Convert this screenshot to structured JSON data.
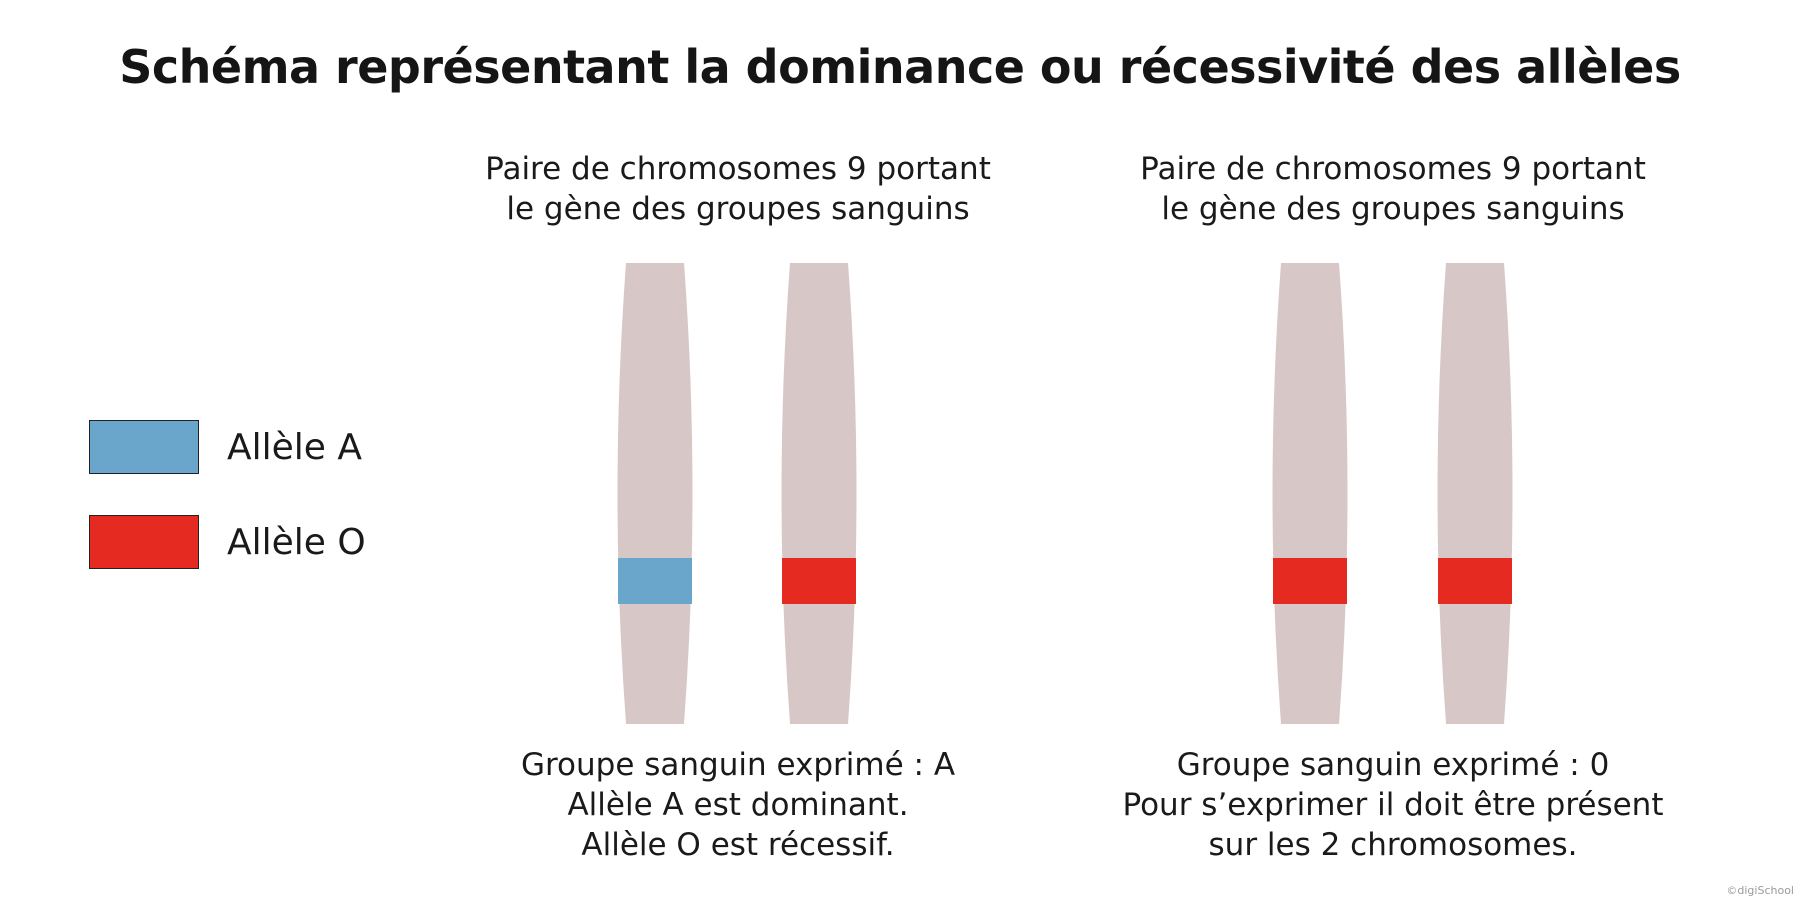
{
  "title": "Schéma représentant la dominance ou récessivité des allèles",
  "colors": {
    "allele_a": "#6aa6cc",
    "allele_o": "#e52a22",
    "chromosome": "#d8c7c7",
    "text": "#1a1a1a"
  },
  "legend": [
    {
      "label": "Allèle A",
      "color": "#6aa6cc"
    },
    {
      "label": "Allèle O",
      "color": "#e52a22"
    }
  ],
  "panels": [
    {
      "heading": [
        "Paire de chromosomes 9 portant",
        "le gène des groupes sanguins"
      ],
      "alleles": [
        "A",
        "O"
      ],
      "caption": [
        "Groupe sanguin exprimé : A",
        "Allèle A est dominant.",
        "Allèle O est récessif."
      ]
    },
    {
      "heading": [
        "Paire de chromosomes 9 portant",
        "le gène des groupes sanguins"
      ],
      "alleles": [
        "O",
        "O"
      ],
      "caption": [
        "Groupe sanguin exprimé : 0",
        "Pour s’exprimer il doit être présent",
        "sur les 2 chromosomes."
      ]
    }
  ],
  "copyright": "©digiSchool"
}
